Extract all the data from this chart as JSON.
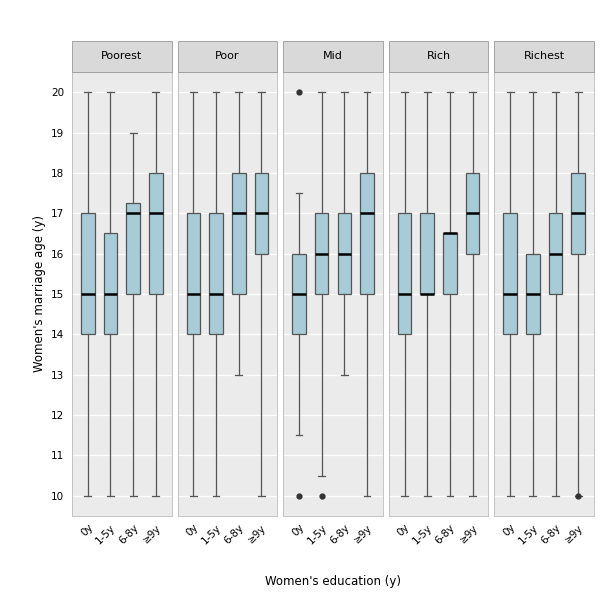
{
  "panels": [
    "Poorest",
    "Poor",
    "Mid",
    "Rich",
    "Richest"
  ],
  "categories": [
    "0y",
    "1-5y",
    "6-8y",
    "≥9y"
  ],
  "box_color": "#a8ccd7",
  "box_edge_color": "#555555",
  "median_color": "#000000",
  "whisker_color": "#555555",
  "flier_color": "#333333",
  "panel_bg_color": "#ebebeb",
  "figure_bg_color": "#ffffff",
  "strip_bg_color": "#d9d9d9",
  "strip_border_color": "#999999",
  "grid_color": "#ffffff",
  "ylim": [
    9.5,
    20.5
  ],
  "yticks": [
    10,
    11,
    12,
    13,
    14,
    15,
    16,
    17,
    18,
    19,
    20
  ],
  "ylabel": "Women's marriage age (y)",
  "xlabel": "Women's education (y)",
  "boxes": {
    "Poorest": {
      "0y": {
        "q1": 14.0,
        "median": 15.0,
        "q3": 17.0,
        "whislo": 10.0,
        "whishi": 20.0,
        "fliers": []
      },
      "1-5y": {
        "q1": 14.0,
        "median": 15.0,
        "q3": 16.5,
        "whislo": 10.0,
        "whishi": 20.0,
        "fliers": []
      },
      "6-8y": {
        "q1": 15.0,
        "median": 17.0,
        "q3": 17.25,
        "whislo": 10.0,
        "whishi": 19.0,
        "fliers": []
      },
      "≥9y": {
        "q1": 15.0,
        "median": 17.0,
        "q3": 18.0,
        "whislo": 10.0,
        "whishi": 20.0,
        "fliers": []
      }
    },
    "Poor": {
      "0y": {
        "q1": 14.0,
        "median": 15.0,
        "q3": 17.0,
        "whislo": 10.0,
        "whishi": 20.0,
        "fliers": []
      },
      "1-5y": {
        "q1": 14.0,
        "median": 15.0,
        "q3": 17.0,
        "whislo": 10.0,
        "whishi": 20.0,
        "fliers": []
      },
      "6-8y": {
        "q1": 15.0,
        "median": 17.0,
        "q3": 18.0,
        "whislo": 13.0,
        "whishi": 20.0,
        "fliers": []
      },
      "≥9y": {
        "q1": 16.0,
        "median": 17.0,
        "q3": 18.0,
        "whislo": 10.0,
        "whishi": 20.0,
        "fliers": []
      }
    },
    "Mid": {
      "0y": {
        "q1": 14.0,
        "median": 15.0,
        "q3": 16.0,
        "whislo": 11.5,
        "whishi": 17.5,
        "fliers": [
          10.0,
          20.0
        ]
      },
      "1-5y": {
        "q1": 15.0,
        "median": 16.0,
        "q3": 17.0,
        "whislo": 10.5,
        "whishi": 20.0,
        "fliers": [
          10.0
        ]
      },
      "6-8y": {
        "q1": 15.0,
        "median": 16.0,
        "q3": 17.0,
        "whislo": 13.0,
        "whishi": 20.0,
        "fliers": []
      },
      "≥9y": {
        "q1": 15.0,
        "median": 17.0,
        "q3": 18.0,
        "whislo": 10.0,
        "whishi": 20.0,
        "fliers": []
      }
    },
    "Rich": {
      "0y": {
        "q1": 14.0,
        "median": 15.0,
        "q3": 17.0,
        "whislo": 10.0,
        "whishi": 20.0,
        "fliers": []
      },
      "1-5y": {
        "q1": 15.0,
        "median": 15.0,
        "q3": 17.0,
        "whislo": 10.0,
        "whishi": 20.0,
        "fliers": []
      },
      "6-8y": {
        "q1": 15.0,
        "median": 16.5,
        "q3": 16.5,
        "whislo": 10.0,
        "whishi": 20.0,
        "fliers": []
      },
      "≥9y": {
        "q1": 16.0,
        "median": 17.0,
        "q3": 18.0,
        "whislo": 10.0,
        "whishi": 20.0,
        "fliers": []
      }
    },
    "Richest": {
      "0y": {
        "q1": 14.0,
        "median": 15.0,
        "q3": 17.0,
        "whislo": 10.0,
        "whishi": 20.0,
        "fliers": []
      },
      "1-5y": {
        "q1": 14.0,
        "median": 15.0,
        "q3": 16.0,
        "whislo": 10.0,
        "whishi": 20.0,
        "fliers": []
      },
      "6-8y": {
        "q1": 15.0,
        "median": 16.0,
        "q3": 17.0,
        "whislo": 10.0,
        "whishi": 20.0,
        "fliers": []
      },
      "≥9y": {
        "q1": 16.0,
        "median": 17.0,
        "q3": 18.0,
        "whislo": 10.0,
        "whishi": 20.0,
        "fliers": [
          10.0
        ]
      }
    }
  }
}
